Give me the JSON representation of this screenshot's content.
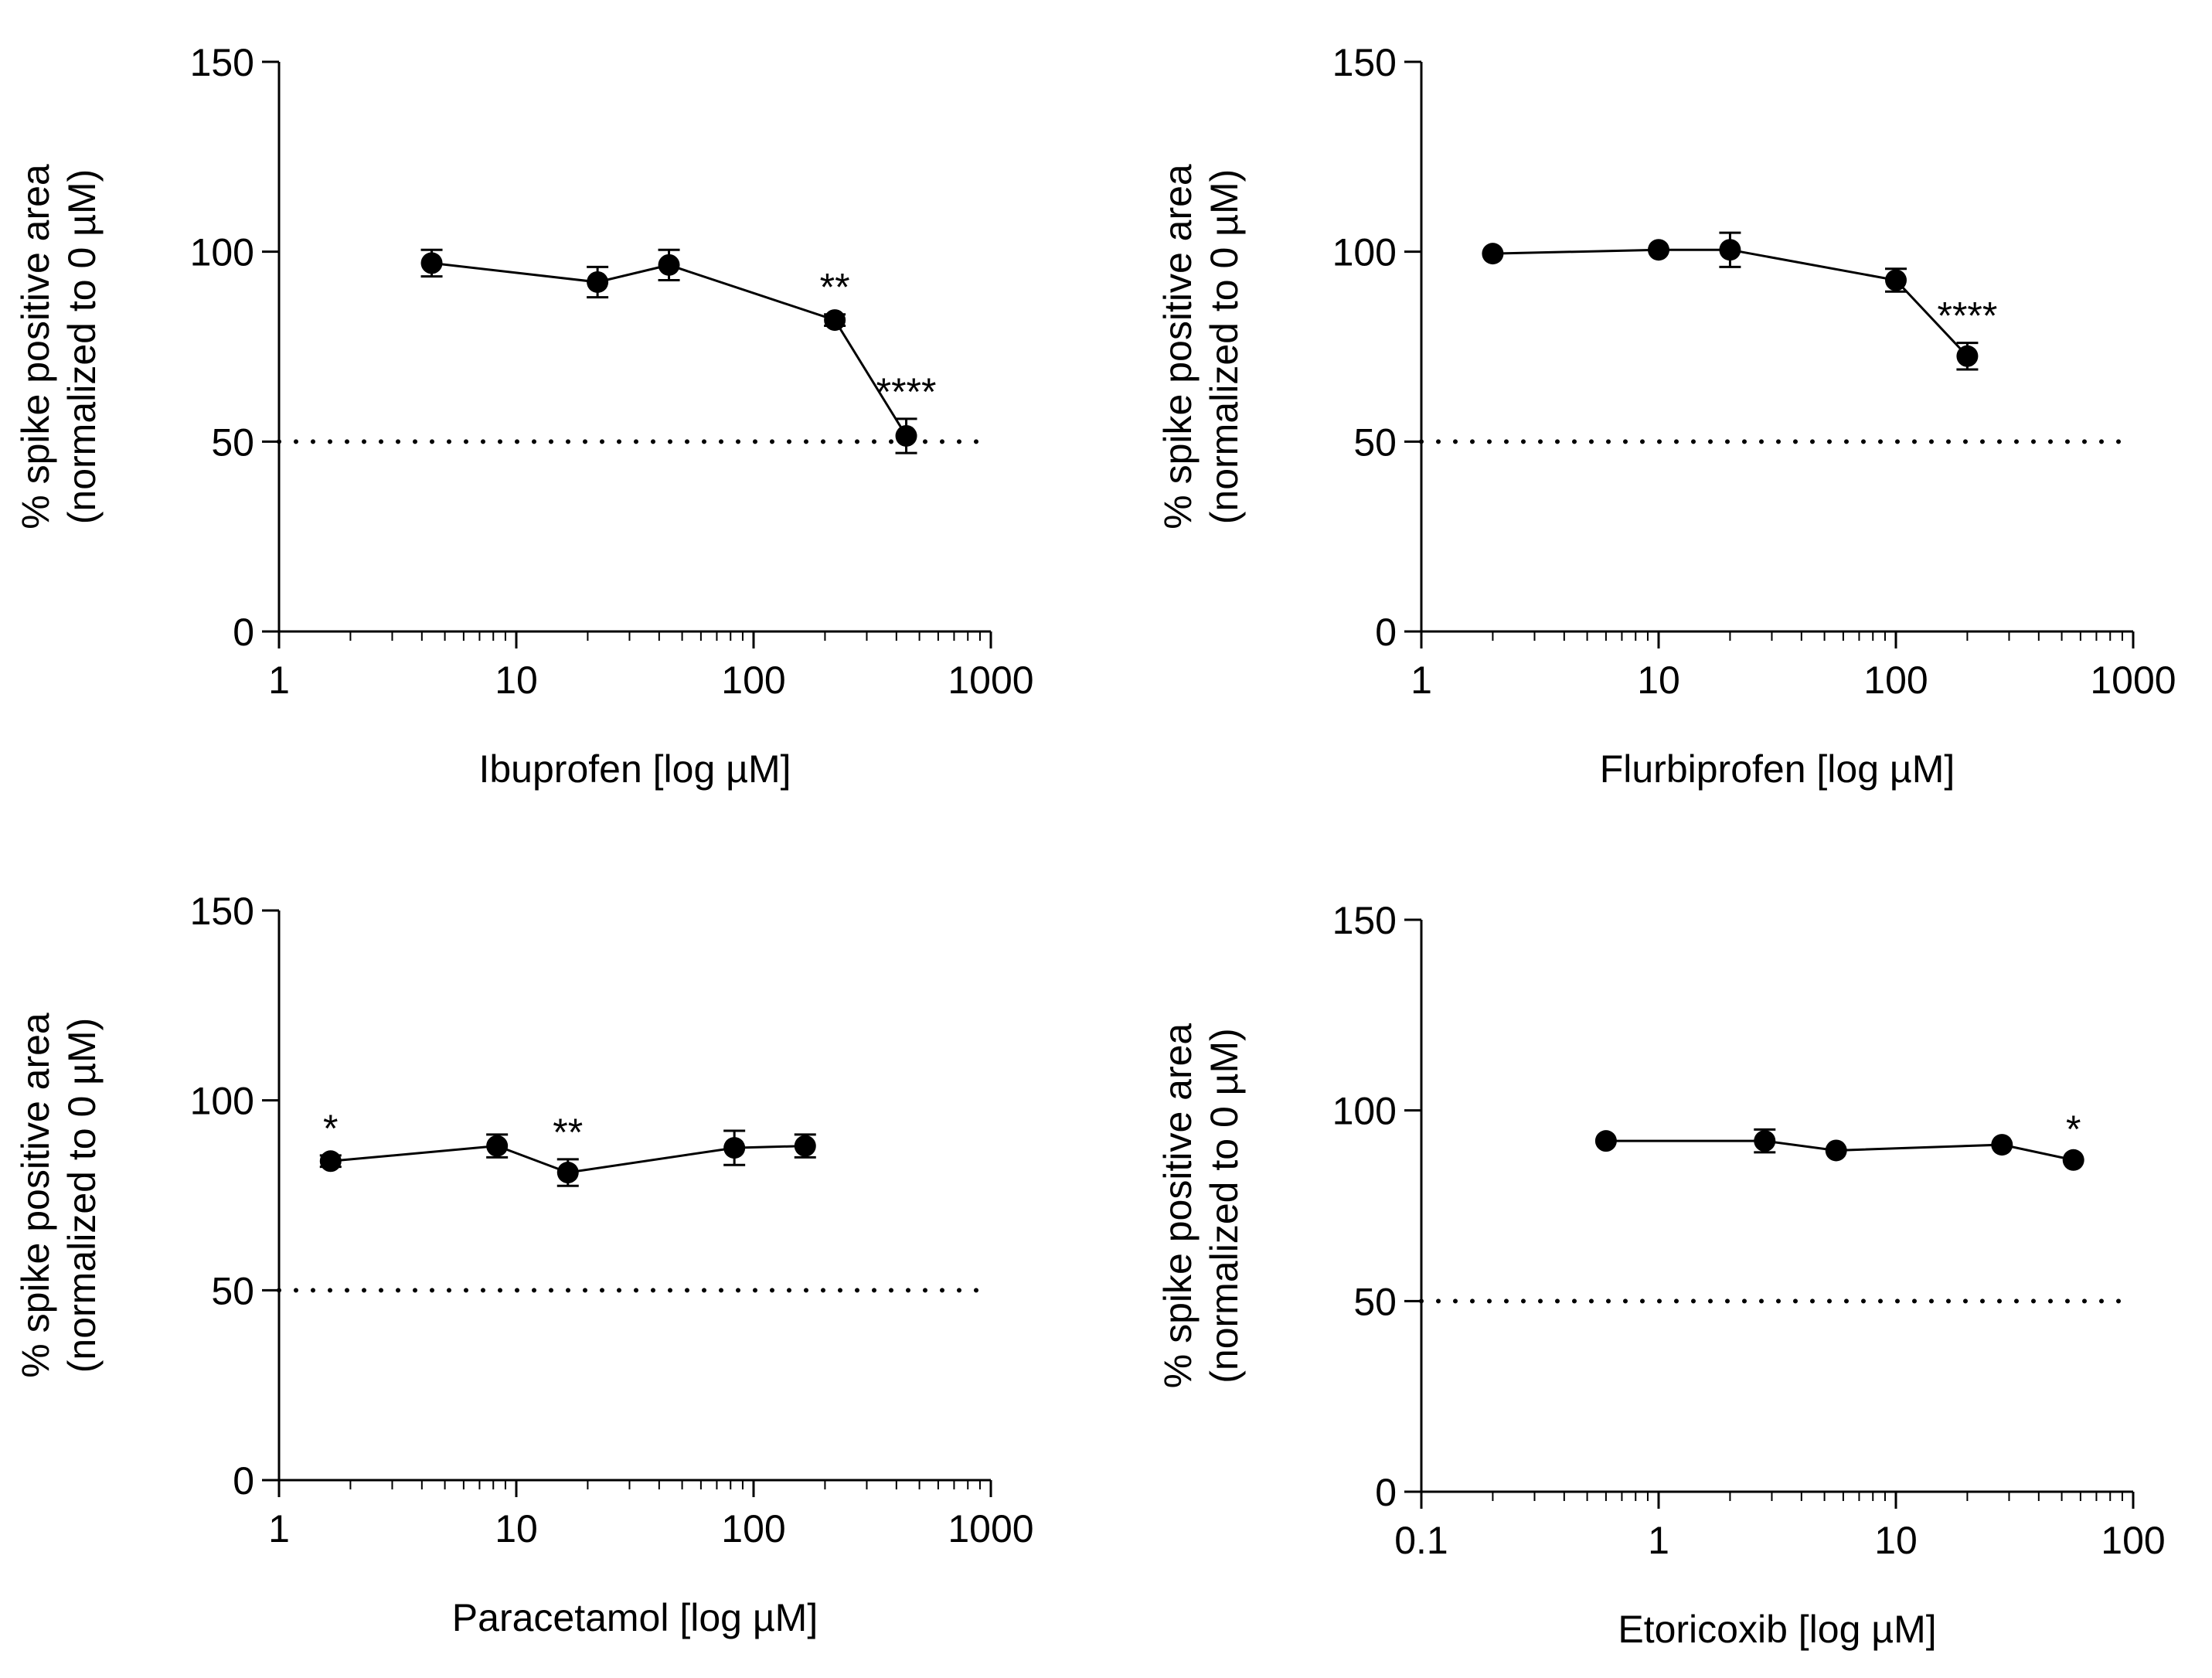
{
  "chart_data": [
    {
      "type": "scatter",
      "xscale": "log",
      "xlim": [
        1,
        1000
      ],
      "ylim": [
        0,
        150
      ],
      "xticks": [
        1,
        10,
        100,
        1000
      ],
      "xtick_labels": [
        "1",
        "10",
        "100",
        "1000"
      ],
      "yticks": [
        0,
        50,
        100,
        150
      ],
      "ytick_labels": [
        "0",
        "50",
        "100",
        "150"
      ],
      "xlabel": "Ibuprofen [log µM]",
      "ylabel_line1": "% spike positive area",
      "ylabel_line2": "(normalized to 0 µM)",
      "reference_line": 50,
      "x": [
        4.4,
        22,
        44,
        220,
        440
      ],
      "y": [
        97,
        92,
        96.5,
        82,
        51.5
      ],
      "err": [
        3.5,
        4,
        4,
        1.5,
        4.5
      ],
      "annotations": [
        "",
        "",
        "",
        "**",
        "****"
      ]
    },
    {
      "type": "scatter",
      "xscale": "log",
      "xlim": [
        1,
        1000
      ],
      "ylim": [
        0,
        150
      ],
      "xticks": [
        1,
        10,
        100,
        1000
      ],
      "xtick_labels": [
        "1",
        "10",
        "100",
        "1000"
      ],
      "yticks": [
        0,
        50,
        100,
        150
      ],
      "ytick_labels": [
        "0",
        "50",
        "100",
        "150"
      ],
      "xlabel": "Flurbiprofen [log µM]",
      "ylabel_line1": "% spike positive area",
      "ylabel_line2": "(normalized to 0 µM)",
      "reference_line": 50,
      "x": [
        2,
        10,
        20,
        100,
        200
      ],
      "y": [
        99.5,
        100.5,
        100.5,
        92.5,
        72.5
      ],
      "err": [
        1,
        1,
        4.5,
        3,
        3.5
      ],
      "annotations": [
        "",
        "",
        "",
        "",
        "****"
      ]
    },
    {
      "type": "scatter",
      "xscale": "log",
      "xlim": [
        1,
        1000
      ],
      "ylim": [
        0,
        150
      ],
      "xticks": [
        1,
        10,
        100,
        1000
      ],
      "xtick_labels": [
        "1",
        "10",
        "100",
        "1000"
      ],
      "yticks": [
        0,
        50,
        100,
        150
      ],
      "ytick_labels": [
        "0",
        "50",
        "100",
        "150"
      ],
      "xlabel": "Paracetamol [log µM]",
      "ylabel_line1": "% spike positive area",
      "ylabel_line2": "(normalized to 0 µM)",
      "reference_line": 50,
      "x": [
        1.65,
        8.3,
        16.5,
        83,
        165
      ],
      "y": [
        84,
        88,
        81,
        87.5,
        88
      ],
      "err": [
        1.5,
        3,
        3.5,
        4.5,
        3
      ],
      "annotations": [
        "*",
        "",
        "**",
        "",
        ""
      ]
    },
    {
      "type": "scatter",
      "xscale": "log",
      "xlim": [
        0.1,
        100
      ],
      "ylim": [
        0,
        150
      ],
      "xticks": [
        0.1,
        1,
        10,
        100
      ],
      "xtick_labels": [
        "0.1",
        "1",
        "10",
        "100"
      ],
      "yticks": [
        0,
        50,
        100,
        150
      ],
      "ytick_labels": [
        "0",
        "50",
        "100",
        "150"
      ],
      "xlabel": "Etoricoxib [log µM]",
      "ylabel_line1": "% spike positive area",
      "ylabel_line2": "(normalized to 0 µM)",
      "reference_line": 50,
      "x": [
        0.6,
        2.8,
        5.6,
        28,
        56
      ],
      "y": [
        92,
        92,
        89.5,
        91,
        87
      ],
      "err": [
        1,
        3,
        1,
        1,
        1
      ],
      "annotations": [
        "",
        "",
        "",
        "",
        "*"
      ]
    }
  ]
}
